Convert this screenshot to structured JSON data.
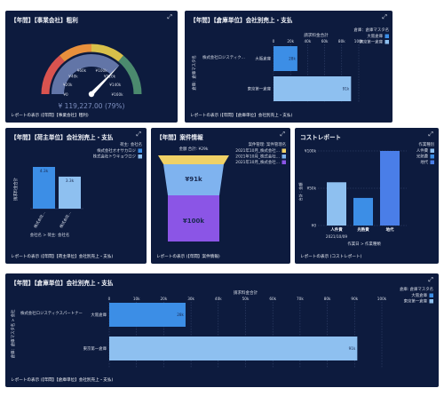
{
  "colors": {
    "panel_bg": "#0d1b3e",
    "gauge_red": "#d9534f",
    "gauge_orange": "#e8903c",
    "gauge_yellow": "#d8c04a",
    "gauge_green": "#4b8a6e",
    "gauge_value": "#6b7fb2",
    "bar_blue": "#3c8ee6",
    "bar_light": "#8ec0f0",
    "funnel_yellow": "#f0d166",
    "funnel_blue": "#7fb3ef",
    "funnel_purple": "#8b55e6"
  },
  "gauge_panel": {
    "title": "【年間】【事業会社】粗利",
    "expand_icon": "expand-icon",
    "ticks": [
      "¥0",
      "¥40k",
      "¥60k",
      "¥100k",
      "¥120k",
      "¥140k",
      "¥160k",
      "¥20k"
    ],
    "value_text": "¥ 119,227.00 (79%)",
    "footer": "レポートの表示 (【年間】【事業会社】粗利)",
    "chart_data": {
      "type": "gauge",
      "value": 119227,
      "min": 0,
      "max": 160000,
      "percent": 79
    }
  },
  "bar_panel_1": {
    "title": "【年間】【倉庫単位】会社別売上・支払",
    "axis_title": "請求料金合計",
    "x_ticks": [
      "0",
      "20k",
      "40k",
      "60k",
      "80k",
      "100k"
    ],
    "y_axis_title": "倉庫：倉庫マスタ名",
    "group_label": "株式会社ロジスティク…",
    "legend_title": "倉庫：倉庫マスタ名",
    "legend": [
      "大阪倉庫",
      "東京第一倉庫"
    ],
    "categories": [
      "大阪倉庫",
      "東京第一倉庫"
    ],
    "bar_labels": [
      "28k",
      "91k"
    ],
    "footer": "レポートの表示 (【年間】【倉庫単位】会社別売上・支払)",
    "chart_data": {
      "type": "bar",
      "categories": [
        "大阪倉庫",
        "東京第一倉庫"
      ],
      "values": [
        28000,
        91000
      ],
      "xlabel": "請求料金合計",
      "xlim": [
        0,
        100000
      ]
    }
  },
  "bar_panel_2": {
    "title": "【年間】【荷主単位】会社別売上・支払",
    "legend_title": "荷主: 会社名",
    "legend": [
      "株式会社オオサカロジ",
      "株式会社トウキョウロジ"
    ],
    "y_axis_title": "請求料金合計",
    "bar_labels": [
      "4.3k",
      "3.3k"
    ],
    "x_labels": [
      "株式会社…",
      "株式会社…"
    ],
    "x_axis_title": "会社名 > 荷主: 会社名",
    "footer": "レポートの表示 (【年間】【荷主単位】会社別売上・支払)",
    "chart_data": {
      "type": "bar",
      "categories": [
        "株式会社オオサカロジ",
        "株式会社トウキョウロジ"
      ],
      "values": [
        4300,
        3300
      ],
      "ylabel": "請求料金合計"
    }
  },
  "funnel_panel": {
    "title": "【年間】案件情報",
    "top_label": "金額 合計: ¥29k",
    "legend_title": "案件管理: 案件管理名",
    "legend": [
      "2021年10月_株式会社…",
      "2021年10月_株式会社…",
      "2021年10月_株式会社…"
    ],
    "mid_label": "¥91k",
    "bottom_label": "¥100k",
    "footer": "レポートの表示 (【年間】案件情報)",
    "chart_data": {
      "type": "funnel",
      "values": [
        29000,
        91000,
        100000
      ]
    }
  },
  "cost_panel": {
    "title": "コストレポート",
    "legend_title": "作業種別",
    "legend": [
      "人件費",
      "光熱費",
      "地代"
    ],
    "y_ticks": [
      "¥0",
      "¥50k",
      "¥100k"
    ],
    "y_axis_title": "合計 : 金額",
    "categories": [
      "人件費",
      "光熱費",
      "地代"
    ],
    "sub_label": "2021/10/09",
    "x_axis_title": "作業日 > 作業種類",
    "footer": "レポートの表示 (コストレポート)",
    "chart_data": {
      "type": "bar",
      "categories": [
        "人件費",
        "光熱費",
        "地代"
      ],
      "values": [
        58000,
        37000,
        100000
      ],
      "ylim": [
        0,
        100000
      ]
    }
  },
  "bar_panel_3": {
    "title": "【年間】【倉庫単位】会社別売上・支払",
    "axis_title": "請求料金合計",
    "x_ticks": [
      "0",
      "10k",
      "20k",
      "30k",
      "40k",
      "50k",
      "60k",
      "70k",
      "80k",
      "90k",
      "100k"
    ],
    "y_axis_title": "倉庫：倉庫マスタ名 > 会社",
    "group_label": "株式会社ロジスティクスパートナー",
    "legend_title": "倉庫: 倉庫マスタ名",
    "legend": [
      "大阪倉庫",
      "東京第一倉庫"
    ],
    "categories": [
      "大阪倉庫",
      "東京第一倉庫"
    ],
    "bar_labels": [
      "28k",
      "91k"
    ],
    "footer": "レポートの表示 (【年間】【倉庫単位】会社別売上・支払)",
    "chart_data": {
      "type": "bar",
      "categories": [
        "大阪倉庫",
        "東京第一倉庫"
      ],
      "values": [
        28000,
        91000
      ],
      "xlabel": "請求料金合計",
      "xlim": [
        0,
        100000
      ]
    }
  }
}
